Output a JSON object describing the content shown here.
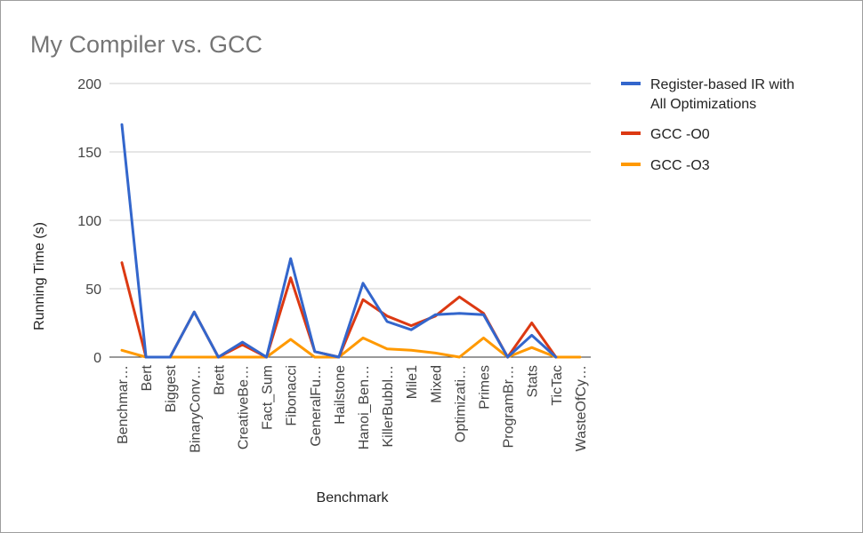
{
  "chart_data": {
    "type": "line",
    "title": "My Compiler vs. GCC",
    "xlabel": "Benchmark",
    "ylabel": "Running Time (s)",
    "ylim": [
      0,
      200
    ],
    "yticks": [
      0,
      50,
      100,
      150,
      200
    ],
    "grid": true,
    "legend_position": "right",
    "categories": [
      "Benchmar…",
      "Bert",
      "Biggest",
      "BinaryConv…",
      "Brett",
      "CreativeBe…",
      "Fact_Sum",
      "Fibonacci",
      "GeneralFu…",
      "Hailstone",
      "Hanoi_Ben…",
      "KillerBubbl…",
      "Mile1",
      "Mixed",
      "Optimizati…",
      "Primes",
      "ProgramBr…",
      "Stats",
      "TicTac",
      "WasteOfCy…"
    ],
    "series": [
      {
        "name": "Register-based IR with All Optimizations",
        "legend_lines": [
          "Register-based IR with",
          "All Optimizations"
        ],
        "color": "#3366cc",
        "values": [
          170,
          0,
          0,
          33,
          0,
          11,
          0,
          72,
          4,
          0,
          54,
          26,
          20,
          31,
          32,
          31,
          0,
          16,
          0,
          null
        ]
      },
      {
        "name": "GCC -O0",
        "legend_lines": [
          "GCC -O0"
        ],
        "color": "#dc3912",
        "values": [
          69,
          0,
          0,
          33,
          0,
          9,
          0,
          58,
          4,
          0,
          42,
          30,
          23,
          30,
          44,
          32,
          0,
          25,
          0,
          null
        ]
      },
      {
        "name": "GCC -O3",
        "legend_lines": [
          "GCC -O3"
        ],
        "color": "#ff9900",
        "values": [
          5,
          0,
          0,
          0,
          0,
          0,
          0,
          13,
          0,
          0,
          14,
          6,
          5,
          3,
          0,
          14,
          0,
          7,
          0,
          0
        ]
      }
    ]
  }
}
